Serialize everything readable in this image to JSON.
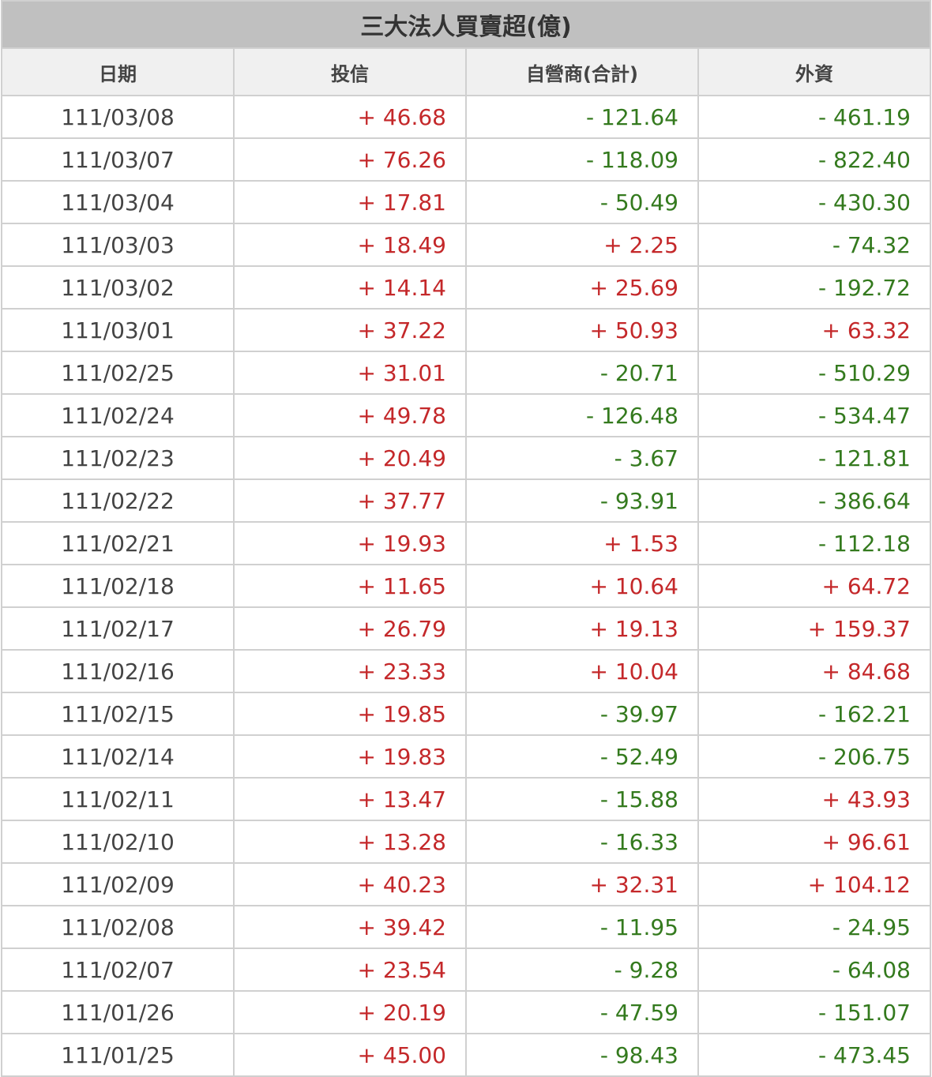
{
  "title": "三大法人買賣超(億)",
  "headers": [
    "日期",
    "投信",
    "自營商(合計)",
    "外資"
  ],
  "colors": {
    "positive": "#c4282a",
    "negative": "#347a1e"
  },
  "rows": [
    [
      "111/03/08",
      "+ 46.68",
      "- 121.64",
      "- 461.19"
    ],
    [
      "111/03/07",
      "+ 76.26",
      "- 118.09",
      "- 822.40"
    ],
    [
      "111/03/04",
      "+ 17.81",
      "- 50.49",
      "- 430.30"
    ],
    [
      "111/03/03",
      "+ 18.49",
      "+ 2.25",
      "- 74.32"
    ],
    [
      "111/03/02",
      "+ 14.14",
      "+ 25.69",
      "- 192.72"
    ],
    [
      "111/03/01",
      "+ 37.22",
      "+ 50.93",
      "+ 63.32"
    ],
    [
      "111/02/25",
      "+ 31.01",
      "- 20.71",
      "- 510.29"
    ],
    [
      "111/02/24",
      "+ 49.78",
      "- 126.48",
      "- 534.47"
    ],
    [
      "111/02/23",
      "+ 20.49",
      "- 3.67",
      "- 121.81"
    ],
    [
      "111/02/22",
      "+ 37.77",
      "- 93.91",
      "- 386.64"
    ],
    [
      "111/02/21",
      "+ 19.93",
      "+ 1.53",
      "- 112.18"
    ],
    [
      "111/02/18",
      "+ 11.65",
      "+ 10.64",
      "+ 64.72"
    ],
    [
      "111/02/17",
      "+ 26.79",
      "+ 19.13",
      "+ 159.37"
    ],
    [
      "111/02/16",
      "+ 23.33",
      "+ 10.04",
      "+ 84.68"
    ],
    [
      "111/02/15",
      "+ 19.85",
      "- 39.97",
      "- 162.21"
    ],
    [
      "111/02/14",
      "+ 19.83",
      "- 52.49",
      "- 206.75"
    ],
    [
      "111/02/11",
      "+ 13.47",
      "- 15.88",
      "+ 43.93"
    ],
    [
      "111/02/10",
      "+ 13.28",
      "- 16.33",
      "+ 96.61"
    ],
    [
      "111/02/09",
      "+ 40.23",
      "+ 32.31",
      "+ 104.12"
    ],
    [
      "111/02/08",
      "+ 39.42",
      "- 11.95",
      "- 24.95"
    ],
    [
      "111/02/07",
      "+ 23.54",
      "- 9.28",
      "- 64.08"
    ],
    [
      "111/01/26",
      "+ 20.19",
      "- 47.59",
      "- 151.07"
    ],
    [
      "111/01/25",
      "+ 45.00",
      "- 98.43",
      "- 473.45"
    ]
  ]
}
